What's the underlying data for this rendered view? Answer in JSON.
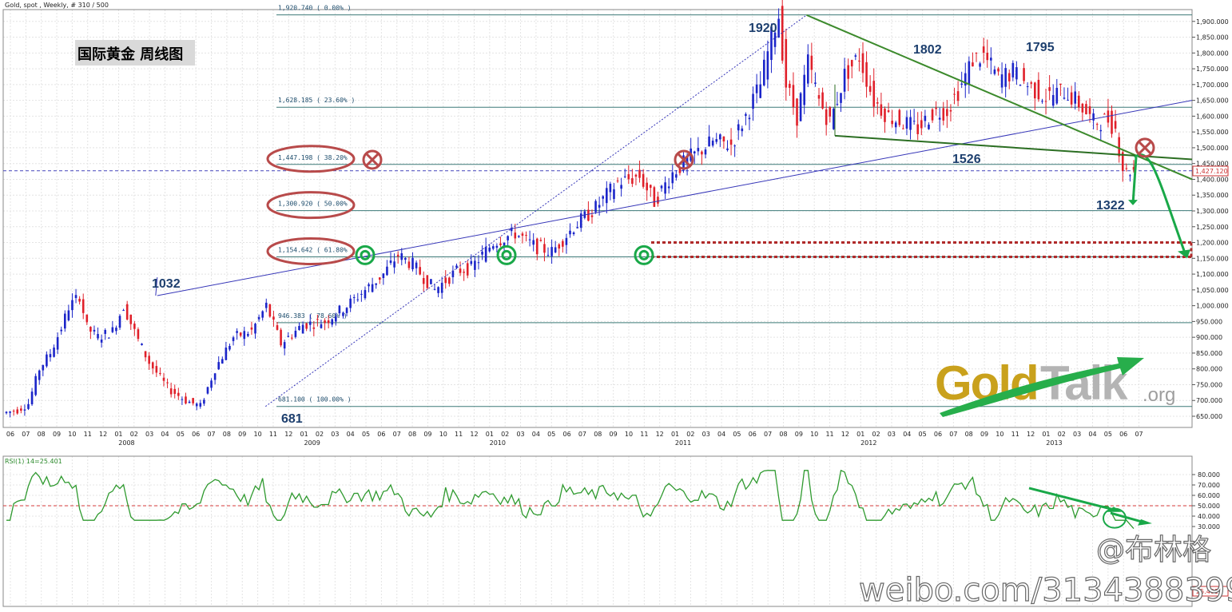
{
  "header": {
    "info": "Gold, spot , Weekly, # 310 / 500"
  },
  "chart_title": "国际黄金 周线图",
  "current_price_label": "1,427.120",
  "fib_levels": [
    {
      "label": "1,920.740 ( 0.00% )",
      "price": 1920.74
    },
    {
      "label": "1,628.185 ( 23.60% )",
      "price": 1628.185
    },
    {
      "label": "1,447.198 ( 38.20% )",
      "price": 1447.198
    },
    {
      "label": "1,300.920 ( 50.00% )",
      "price": 1300.92
    },
    {
      "label": "1,154.642 ( 61.80% )",
      "price": 1154.642
    },
    {
      "label": "946.383 ( 78.60% )",
      "price": 946.383
    },
    {
      "label": "681.100 ( 100.00% )",
      "price": 681.1
    }
  ],
  "annotations": [
    {
      "text": "1920",
      "price": 1920
    },
    {
      "text": "1802",
      "price": 1802
    },
    {
      "text": "1795",
      "price": 1795
    },
    {
      "text": "1032",
      "price": 1032
    },
    {
      "text": "1526",
      "price": 1526
    },
    {
      "text": "1322",
      "price": 1322
    },
    {
      "text": "681",
      "price": 681
    }
  ],
  "month_labels": [
    "06",
    "07",
    "08",
    "09",
    "10",
    "11",
    "12",
    "01",
    "02",
    "03",
    "04",
    "05",
    "06",
    "07",
    "08",
    "09",
    "10",
    "11",
    "12",
    "01",
    "02",
    "03",
    "04",
    "05",
    "06",
    "07",
    "08",
    "09",
    "10",
    "11",
    "12",
    "01",
    "02",
    "03",
    "04",
    "05",
    "06",
    "07",
    "08",
    "09",
    "10",
    "11",
    "12",
    "01",
    "02",
    "03",
    "04",
    "05",
    "06",
    "07",
    "08",
    "09",
    "10",
    "11",
    "12",
    "01",
    "02",
    "03",
    "04",
    "05",
    "06",
    "07",
    "08",
    "09",
    "10",
    "11",
    "12",
    "01",
    "02",
    "03",
    "04",
    "05",
    "06",
    "07"
  ],
  "year_labels": [
    "2008",
    "2009",
    "2010",
    "2011",
    "2012",
    "2013"
  ],
  "rsi": {
    "label": "RSI(1) 14=25.401",
    "ticks": [
      "80.000",
      "70.000",
      "60.000",
      "50.000",
      "40.000",
      "30.000"
    ],
    "current_label": "25.401"
  },
  "watermark": {
    "gold": "Gold",
    "talk": "Talk",
    "org": ".org"
  },
  "weibo": {
    "handle": "@布林格",
    "url": "weibo.com/3134388399"
  },
  "colors": {
    "up": "#1b25c9",
    "down": "#e0202a",
    "trend_green": "#3c8a2c",
    "fib_line": "#3d7a78",
    "arrow_green": "#19a848",
    "circle_red": "#b84a4a",
    "rsi_line": "#2f9a2f"
  },
  "chart_data": {
    "type": "candlestick",
    "title": "国际黄金 周线图",
    "instrument": "Gold, spot , Weekly",
    "xlabel": "",
    "ylabel": "",
    "ylim": [
      620,
      1950
    ],
    "yticks": [
      650,
      700,
      750,
      800,
      850,
      900,
      950,
      1000,
      1050,
      1100,
      1150,
      1200,
      1250,
      1300,
      1350,
      1400,
      1450,
      1500,
      1550,
      1600,
      1650,
      1700,
      1750,
      1800,
      1850,
      1900
    ],
    "x_range": [
      "2007-06",
      "2013-07"
    ],
    "key_points": [
      {
        "date": "2008-03",
        "price": 1032
      },
      {
        "date": "2008-10",
        "price": 681
      },
      {
        "date": "2011-09",
        "price": 1920
      },
      {
        "date": "2012-02",
        "price": 1802
      },
      {
        "date": "2012-10",
        "price": 1795
      },
      {
        "date": "2012-06",
        "price": 1526
      },
      {
        "date": "2013-04",
        "price": 1322
      }
    ],
    "current_price": 1427.12,
    "rsi_current": 25.401,
    "rsi_ylim": [
      23,
      87
    ]
  }
}
